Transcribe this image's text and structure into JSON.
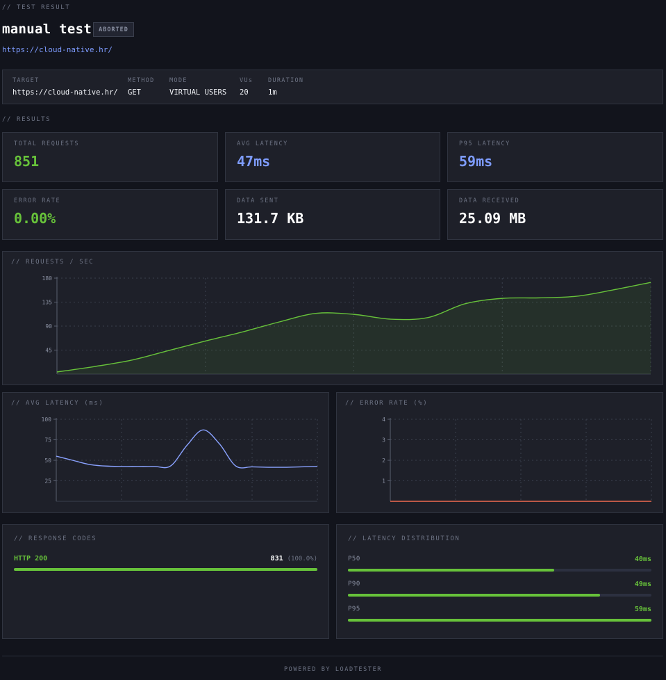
{
  "header": {
    "section_label": "// TEST RESULT",
    "title": "manual test",
    "badge": "ABORTED",
    "url": "https://cloud-native.hr/"
  },
  "info": {
    "target_label": "TARGET",
    "target_value": "https://cloud-native.hr/",
    "method_label": "METHOD",
    "method_value": "GET",
    "mode_label": "MODE",
    "mode_value": "VIRTUAL USERS",
    "vus_label": "VUs",
    "vus_value": "20",
    "duration_label": "DURATION",
    "duration_value": "1m"
  },
  "results_label": "// RESULTS",
  "metrics": [
    {
      "label": "TOTAL REQUESTS",
      "value": "851",
      "color": "#67c23a"
    },
    {
      "label": "AVG LATENCY",
      "value": "47ms",
      "color": "#7e9cff"
    },
    {
      "label": "P95 LATENCY",
      "value": "59ms",
      "color": "#7e9cff"
    },
    {
      "label": "ERROR RATE",
      "value": "0.00%",
      "color": "#67c23a"
    },
    {
      "label": "DATA SENT",
      "value": "131.7 KB",
      "color": "#ffffff"
    },
    {
      "label": "DATA RECEIVED",
      "value": "25.09 MB",
      "color": "#ffffff"
    }
  ],
  "chart_data": [
    {
      "type": "area",
      "title": "// REQUESTS / SEC",
      "yticks": [
        "180",
        "135",
        "90",
        "45"
      ],
      "ylim": [
        0,
        180
      ],
      "x": [
        0,
        1,
        2,
        3,
        4,
        5,
        6,
        7,
        8,
        9,
        10,
        11,
        12,
        13,
        14,
        15,
        16
      ],
      "values": [
        4,
        14,
        26,
        44,
        62,
        79,
        98,
        114,
        112,
        103,
        106,
        132,
        142,
        143,
        146,
        158,
        172
      ],
      "color": "#67c23a",
      "grid": true
    },
    {
      "type": "line",
      "title": "// AVG LATENCY (ms)",
      "yticks": [
        "100",
        "75",
        "50",
        "25"
      ],
      "ylim": [
        0,
        100
      ],
      "x": [
        0,
        1,
        2,
        3,
        4,
        5,
        6,
        7,
        8,
        9,
        10,
        11,
        12,
        13,
        14,
        15,
        16
      ],
      "values": [
        55,
        50,
        45,
        43,
        42.5,
        42.5,
        42.5,
        43,
        68,
        87,
        70,
        43,
        42,
        41.5,
        41.5,
        42,
        42.5
      ],
      "color": "#8aa2ff",
      "grid": true
    },
    {
      "type": "line",
      "title": "// ERROR RATE (%)",
      "yticks": [
        "4",
        "3",
        "2",
        "1"
      ],
      "ylim": [
        0,
        4
      ],
      "x": [
        0,
        1,
        2,
        3,
        4,
        5,
        6,
        7,
        8
      ],
      "values": [
        0,
        0,
        0,
        0,
        0,
        0,
        0,
        0,
        0
      ],
      "color": "#f06b50",
      "grid": true
    }
  ],
  "response_codes": {
    "title": "// RESPONSE CODES",
    "items": [
      {
        "code": "HTTP 200",
        "count": "831",
        "pct": "(100.0%)",
        "fraction": 1.0
      }
    ]
  },
  "latency_distribution": {
    "title": "// LATENCY DISTRIBUTION",
    "items": [
      {
        "label": "P50",
        "value": "40ms",
        "fraction": 0.68
      },
      {
        "label": "P90",
        "value": "49ms",
        "fraction": 0.83
      },
      {
        "label": "P95",
        "value": "59ms",
        "fraction": 1.0
      }
    ]
  },
  "footer": "POWERED BY LOADTESTER"
}
